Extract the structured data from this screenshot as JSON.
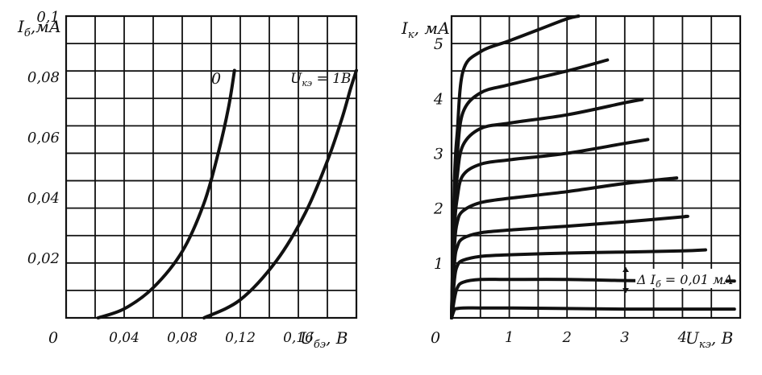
{
  "chart_data": [
    {
      "type": "line",
      "ylabel": "I_б, мА",
      "ylabel_main": "I",
      "ylabel_sub": "б",
      "ylabel_unit": ",мА",
      "xlabel": "U_бэ, В",
      "xlabel_main": "U",
      "xlabel_sub": "бэ",
      "xlabel_unit": ", В",
      "xlim": [
        0,
        0.2
      ],
      "ylim": [
        0,
        0.1
      ],
      "origin_label": "0",
      "x_ticks": [
        {
          "value": 0.04,
          "label": "0,04"
        },
        {
          "value": 0.08,
          "label": "0,08"
        },
        {
          "value": 0.12,
          "label": "0,12"
        },
        {
          "value": 0.16,
          "label": "0,16"
        }
      ],
      "y_ticks": [
        {
          "value": 0.02,
          "label": "0,02"
        },
        {
          "value": 0.04,
          "label": "0,04"
        },
        {
          "value": 0.06,
          "label": "0,06"
        },
        {
          "value": 0.08,
          "label": "0,08"
        },
        {
          "value": 0.1,
          "label": "0,1"
        }
      ],
      "grid": true,
      "series": [
        {
          "name": "0",
          "x": [
            0.022,
            0.04,
            0.06,
            0.08,
            0.095,
            0.105,
            0.112,
            0.116
          ],
          "y": [
            0,
            0.003,
            0.01,
            0.022,
            0.038,
            0.055,
            0.07,
            0.082
          ]
        },
        {
          "name": "U_кэ = 1В",
          "x": [
            0.095,
            0.12,
            0.145,
            0.165,
            0.18,
            0.19,
            0.196,
            0.2
          ],
          "y": [
            0,
            0.006,
            0.019,
            0.035,
            0.052,
            0.066,
            0.076,
            0.082
          ]
        }
      ],
      "annotations": [
        {
          "text": "0"
        },
        {
          "text_main": "U",
          "text_sub": "кэ",
          "text_rest": " = 1В"
        }
      ]
    },
    {
      "type": "line",
      "ylabel": "I_к, мА",
      "ylabel_main": "I",
      "ylabel_sub": "к",
      "ylabel_unit": ", мА",
      "xlabel": "U_кэ, В",
      "xlabel_main": "U",
      "xlabel_sub": "кэ",
      "xlabel_unit": ", В",
      "xlim": [
        0,
        5
      ],
      "ylim": [
        0,
        5.5
      ],
      "origin_label": "0",
      "x_ticks": [
        {
          "value": 1,
          "label": "1"
        },
        {
          "value": 2,
          "label": "2"
        },
        {
          "value": 3,
          "label": "3"
        },
        {
          "value": 4,
          "label": "4"
        }
      ],
      "y_ticks": [
        {
          "value": 1,
          "label": "1"
        },
        {
          "value": 2,
          "label": "2"
        },
        {
          "value": 3,
          "label": "3"
        },
        {
          "value": 4,
          "label": "4"
        },
        {
          "value": 5,
          "label": "5"
        }
      ],
      "grid": true,
      "series": [
        {
          "x": [
            0,
            0.05,
            0.1,
            0.2,
            0.5,
            1,
            2,
            3,
            4,
            4.9
          ],
          "y": [
            0,
            0.15,
            0.17,
            0.18,
            0.18,
            0.18,
            0.17,
            0.16,
            0.16,
            0.16
          ]
        },
        {
          "x": [
            0,
            0.05,
            0.1,
            0.2,
            0.5,
            1,
            2,
            3,
            4,
            4.9
          ],
          "y": [
            0,
            0.35,
            0.55,
            0.65,
            0.7,
            0.7,
            0.7,
            0.68,
            0.67,
            0.67
          ]
        },
        {
          "x": [
            0,
            0.05,
            0.1,
            0.2,
            0.5,
            1,
            2,
            3,
            4,
            4.4
          ],
          "y": [
            0,
            0.7,
            0.95,
            1.05,
            1.12,
            1.15,
            1.18,
            1.2,
            1.22,
            1.24
          ]
        },
        {
          "x": [
            0,
            0.05,
            0.1,
            0.2,
            0.5,
            1,
            2,
            3,
            4,
            4.05
          ],
          "y": [
            0,
            1.0,
            1.3,
            1.45,
            1.55,
            1.6,
            1.67,
            1.75,
            1.84,
            1.85
          ]
        },
        {
          "x": [
            0,
            0.05,
            0.1,
            0.2,
            0.5,
            1,
            2,
            3,
            3.9
          ],
          "y": [
            0,
            1.3,
            1.75,
            1.95,
            2.1,
            2.18,
            2.3,
            2.45,
            2.55
          ]
        },
        {
          "x": [
            0,
            0.05,
            0.1,
            0.2,
            0.5,
            1,
            2,
            3,
            3.4
          ],
          "y": [
            0,
            1.6,
            2.2,
            2.6,
            2.8,
            2.88,
            3.0,
            3.18,
            3.25
          ]
        },
        {
          "x": [
            0,
            0.05,
            0.1,
            0.2,
            0.5,
            1,
            2,
            3,
            3.3
          ],
          "y": [
            0,
            1.9,
            2.6,
            3.15,
            3.45,
            3.55,
            3.7,
            3.92,
            3.98
          ]
        },
        {
          "x": [
            0,
            0.05,
            0.1,
            0.2,
            0.5,
            1,
            2,
            2.7
          ],
          "y": [
            0,
            2.2,
            3.0,
            3.75,
            4.1,
            4.25,
            4.5,
            4.7
          ]
        },
        {
          "x": [
            0,
            0.05,
            0.1,
            0.2,
            0.5,
            1,
            1.5,
            2,
            2.2
          ],
          "y": [
            0,
            2.5,
            3.4,
            4.5,
            4.85,
            5.05,
            5.25,
            5.45,
            5.5
          ]
        }
      ],
      "annotations": [
        {
          "text_main": "Δ I",
          "text_sub": "б",
          "text_rest": " = 0,01 мА"
        }
      ]
    }
  ]
}
